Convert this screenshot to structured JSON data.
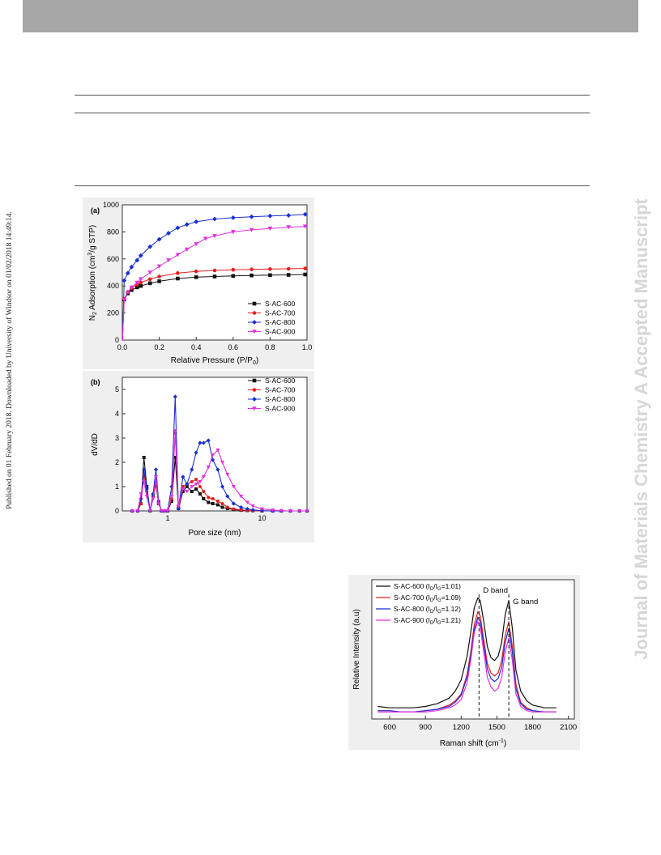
{
  "side_text": {
    "published": "Published on 01 February 2018. Downloaded by University of Windsor on 01/02/2018 14:49:14.",
    "journal": "Journal of Materials Chemistry A Accepted Manuscript"
  },
  "colors": {
    "S-AC-600": "#111111",
    "S-AC-700": "#e02020",
    "S-AC-800": "#1a2fd0",
    "S-AC-900": "#e030e0"
  },
  "chart_data": [
    {
      "panel": "(a)",
      "type": "line",
      "xlabel": "Relative Pressure (P/P",
      "xlabel_sub": "0",
      "xlabel_end": ")",
      "ylabel_pre": "N",
      "ylabel_sub": "2",
      "ylabel_mid": " Adsorption (cm",
      "ylabel_sup": "3",
      "ylabel_end": "/g STP)",
      "xlim": [
        0,
        1
      ],
      "ylim": [
        0,
        1000
      ],
      "xticks": [
        "0.0",
        "0.2",
        "0.4",
        "0.6",
        "0.8",
        "1.0"
      ],
      "yticks": [
        "0",
        "200",
        "400",
        "600",
        "800",
        "1000"
      ],
      "legend": "bottom-right",
      "series": [
        {
          "name": "S-AC-600",
          "marker": "square",
          "x": [
            0.001,
            0.01,
            0.03,
            0.05,
            0.08,
            0.1,
            0.15,
            0.2,
            0.3,
            0.4,
            0.5,
            0.6,
            0.7,
            0.8,
            0.9,
            0.99
          ],
          "y": [
            0,
            300,
            345,
            370,
            390,
            400,
            420,
            435,
            455,
            465,
            470,
            474,
            478,
            480,
            482,
            485
          ]
        },
        {
          "name": "S-AC-700",
          "marker": "circle",
          "x": [
            0.001,
            0.01,
            0.03,
            0.05,
            0.08,
            0.1,
            0.15,
            0.2,
            0.3,
            0.4,
            0.5,
            0.6,
            0.7,
            0.8,
            0.9,
            0.99
          ],
          "y": [
            0,
            305,
            355,
            385,
            410,
            425,
            450,
            470,
            495,
            508,
            515,
            520,
            523,
            525,
            527,
            530
          ]
        },
        {
          "name": "S-AC-800",
          "marker": "diamond",
          "x": [
            0.001,
            0.01,
            0.03,
            0.05,
            0.08,
            0.1,
            0.15,
            0.2,
            0.25,
            0.3,
            0.35,
            0.4,
            0.5,
            0.6,
            0.7,
            0.8,
            0.9,
            0.99
          ],
          "y": [
            0,
            440,
            495,
            540,
            590,
            625,
            690,
            745,
            790,
            830,
            855,
            875,
            895,
            905,
            912,
            918,
            922,
            930
          ]
        },
        {
          "name": "S-AC-900",
          "marker": "triangle-down",
          "x": [
            0.001,
            0.01,
            0.03,
            0.05,
            0.08,
            0.1,
            0.15,
            0.2,
            0.25,
            0.3,
            0.35,
            0.4,
            0.45,
            0.5,
            0.6,
            0.7,
            0.8,
            0.9,
            0.99
          ],
          "y": [
            0,
            300,
            355,
            390,
            425,
            450,
            500,
            545,
            590,
            630,
            670,
            710,
            750,
            770,
            800,
            815,
            825,
            835,
            840
          ]
        }
      ]
    },
    {
      "panel": "(b)",
      "type": "line",
      "xlabel": "Pore size (nm)",
      "ylabel": "dV/dD",
      "xscale": "log",
      "xlim": [
        0.33,
        30
      ],
      "ylim": [
        0,
        5.5
      ],
      "xticks": [
        "1",
        "10"
      ],
      "xtick_values": [
        1,
        10
      ],
      "yticks": [
        "0",
        "1",
        "2",
        "3",
        "4",
        "5"
      ],
      "legend": "top-right",
      "series": [
        {
          "name": "S-AC-600",
          "marker": "square",
          "x": [
            0.42,
            0.48,
            0.52,
            0.56,
            0.6,
            0.65,
            0.7,
            0.75,
            0.8,
            0.86,
            0.92,
            1.0,
            1.1,
            1.2,
            1.3,
            1.45,
            1.6,
            1.8,
            2.0,
            2.2,
            2.4,
            2.7,
            3.0,
            3.4,
            3.8,
            4.3,
            5,
            6,
            7,
            8,
            10,
            13,
            16,
            20,
            25,
            30
          ],
          "y": [
            0,
            0,
            0.3,
            2.2,
            1.0,
            0,
            0.6,
            1.1,
            0.3,
            0,
            0,
            0,
            0.4,
            2.2,
            0.1,
            0.8,
            1.0,
            0.8,
            0.9,
            0.7,
            0.5,
            0.35,
            0.3,
            0.25,
            0.15,
            0.1,
            0.05,
            0.03,
            0.02,
            0.01,
            0,
            0,
            0,
            0,
            0,
            0
          ]
        },
        {
          "name": "S-AC-700",
          "marker": "circle",
          "x": [
            0.42,
            0.48,
            0.52,
            0.56,
            0.6,
            0.65,
            0.7,
            0.75,
            0.8,
            0.86,
            0.92,
            1.0,
            1.1,
            1.2,
            1.3,
            1.45,
            1.6,
            1.8,
            2.0,
            2.2,
            2.4,
            2.7,
            3.0,
            3.4,
            3.8,
            4.3,
            5,
            6,
            7,
            8,
            10,
            13,
            16,
            20,
            25,
            30
          ],
          "y": [
            0,
            0,
            0.3,
            1.5,
            0.8,
            0,
            0.6,
            1.2,
            0.3,
            0,
            0,
            0,
            0.5,
            3.2,
            0.2,
            1.0,
            1.1,
            1.2,
            1.3,
            1.0,
            0.8,
            0.55,
            0.5,
            0.4,
            0.3,
            0.15,
            0.08,
            0.04,
            0.02,
            0.01,
            0,
            0,
            0,
            0,
            0,
            0
          ]
        },
        {
          "name": "S-AC-800",
          "marker": "diamond",
          "x": [
            0.42,
            0.48,
            0.52,
            0.56,
            0.6,
            0.65,
            0.7,
            0.75,
            0.8,
            0.86,
            0.92,
            1.0,
            1.1,
            1.2,
            1.3,
            1.45,
            1.6,
            1.8,
            2.0,
            2.2,
            2.4,
            2.7,
            3.0,
            3.4,
            3.8,
            4.3,
            5,
            6,
            7,
            8,
            10,
            13,
            16,
            20,
            25,
            30
          ],
          "y": [
            0,
            0,
            0.5,
            1.7,
            0.9,
            0,
            0.7,
            1.7,
            0.4,
            0,
            0,
            0,
            1.0,
            4.7,
            0.1,
            1.4,
            1.1,
            1.7,
            2.4,
            2.8,
            2.8,
            2.9,
            2.1,
            1.7,
            1.0,
            0.6,
            0.3,
            0.15,
            0.08,
            0.04,
            0.01,
            0,
            0,
            0,
            0,
            0
          ]
        },
        {
          "name": "S-AC-900",
          "marker": "triangle-down",
          "x": [
            0.42,
            0.48,
            0.52,
            0.56,
            0.6,
            0.65,
            0.7,
            0.75,
            0.8,
            0.86,
            0.92,
            1.0,
            1.1,
            1.2,
            1.3,
            1.45,
            1.6,
            1.8,
            2.0,
            2.2,
            2.4,
            2.7,
            3.0,
            3.4,
            3.8,
            4.3,
            5,
            6,
            7,
            8,
            10,
            13,
            16,
            20,
            25,
            30
          ],
          "y": [
            0,
            0,
            0.7,
            1.2,
            0.6,
            0,
            0.5,
            1.4,
            0.3,
            0,
            0,
            0,
            0.6,
            3.3,
            0.2,
            0.9,
            0.8,
            1.0,
            1.1,
            1.2,
            1.4,
            1.8,
            2.3,
            2.5,
            2.0,
            1.5,
            1.0,
            0.6,
            0.35,
            0.2,
            0.08,
            0.03,
            0.01,
            0,
            0,
            0
          ]
        }
      ]
    },
    {
      "panel": "raman",
      "type": "line",
      "xlabel": "Raman shift (cm",
      "xlabel_sup": "-1",
      "xlabel_end": ")",
      "ylabel": "Relative Intensity (a.u)",
      "xlim": [
        450,
        2150
      ],
      "ylim": [
        0,
        1.0
      ],
      "xticks": [
        "600",
        "900",
        "1200",
        "1500",
        "1800",
        "2100"
      ],
      "xtick_values": [
        600,
        900,
        1200,
        1500,
        1800,
        2100
      ],
      "legend": "top-left",
      "annotations": [
        {
          "text": "D band",
          "x": 1350
        },
        {
          "text": "G band",
          "x": 1600
        }
      ],
      "series": [
        {
          "name_pre": "S-AC-600 (I",
          "name_sub1": "D",
          "name_mid": "/I",
          "name_sub2": "G",
          "name_end": "=1.01)",
          "x": [
            500,
            600,
            700,
            800,
            900,
            1000,
            1100,
            1150,
            1200,
            1250,
            1280,
            1310,
            1340,
            1360,
            1390,
            1420,
            1450,
            1480,
            1510,
            1540,
            1570,
            1600,
            1630,
            1660,
            1700,
            1750,
            1800,
            1900,
            2000
          ],
          "y": [
            0.09,
            0.08,
            0.08,
            0.08,
            0.09,
            0.11,
            0.15,
            0.2,
            0.28,
            0.45,
            0.62,
            0.8,
            0.87,
            0.85,
            0.7,
            0.52,
            0.44,
            0.42,
            0.45,
            0.55,
            0.75,
            0.85,
            0.65,
            0.35,
            0.2,
            0.13,
            0.1,
            0.08,
            0.08
          ]
        },
        {
          "name_pre": "S-AC-700 (I",
          "name_sub1": "D",
          "name_mid": "/I",
          "name_sub2": "G",
          "name_end": "=1.09)",
          "x": [
            500,
            600,
            700,
            800,
            900,
            1000,
            1100,
            1150,
            1200,
            1250,
            1280,
            1310,
            1340,
            1360,
            1390,
            1420,
            1450,
            1480,
            1510,
            1540,
            1570,
            1600,
            1630,
            1660,
            1700,
            1750,
            1800,
            1900,
            2000
          ],
          "y": [
            0.05,
            0.05,
            0.05,
            0.05,
            0.06,
            0.07,
            0.1,
            0.13,
            0.18,
            0.32,
            0.48,
            0.68,
            0.77,
            0.74,
            0.57,
            0.4,
            0.33,
            0.31,
            0.33,
            0.42,
            0.6,
            0.7,
            0.52,
            0.25,
            0.12,
            0.08,
            0.06,
            0.05,
            0.05
          ]
        },
        {
          "name_pre": "S-AC-800 (I",
          "name_sub1": "D",
          "name_mid": "/I",
          "name_sub2": "G",
          "name_end": "=1.12)",
          "x": [
            500,
            600,
            700,
            800,
            900,
            1000,
            1100,
            1150,
            1200,
            1250,
            1280,
            1310,
            1340,
            1360,
            1390,
            1420,
            1450,
            1480,
            1510,
            1540,
            1570,
            1600,
            1630,
            1660,
            1700,
            1750,
            1800,
            1900,
            2000
          ],
          "y": [
            0.06,
            0.06,
            0.05,
            0.05,
            0.06,
            0.07,
            0.09,
            0.12,
            0.17,
            0.3,
            0.45,
            0.64,
            0.73,
            0.7,
            0.53,
            0.36,
            0.29,
            0.27,
            0.29,
            0.37,
            0.55,
            0.65,
            0.48,
            0.22,
            0.11,
            0.07,
            0.06,
            0.05,
            0.05
          ]
        },
        {
          "name_pre": "S-AC-900 (I",
          "name_sub1": "D",
          "name_mid": "/I",
          "name_sub2": "G",
          "name_end": "=1.21)",
          "x": [
            500,
            600,
            700,
            800,
            900,
            1000,
            1100,
            1150,
            1200,
            1250,
            1280,
            1310,
            1340,
            1360,
            1390,
            1420,
            1450,
            1480,
            1510,
            1540,
            1570,
            1600,
            1630,
            1660,
            1700,
            1750,
            1800,
            1900,
            2000
          ],
          "y": [
            0.05,
            0.05,
            0.05,
            0.05,
            0.05,
            0.06,
            0.08,
            0.1,
            0.14,
            0.26,
            0.42,
            0.62,
            0.7,
            0.66,
            0.48,
            0.3,
            0.23,
            0.2,
            0.22,
            0.3,
            0.48,
            0.58,
            0.42,
            0.18,
            0.09,
            0.06,
            0.05,
            0.05,
            0.05
          ]
        }
      ]
    }
  ]
}
